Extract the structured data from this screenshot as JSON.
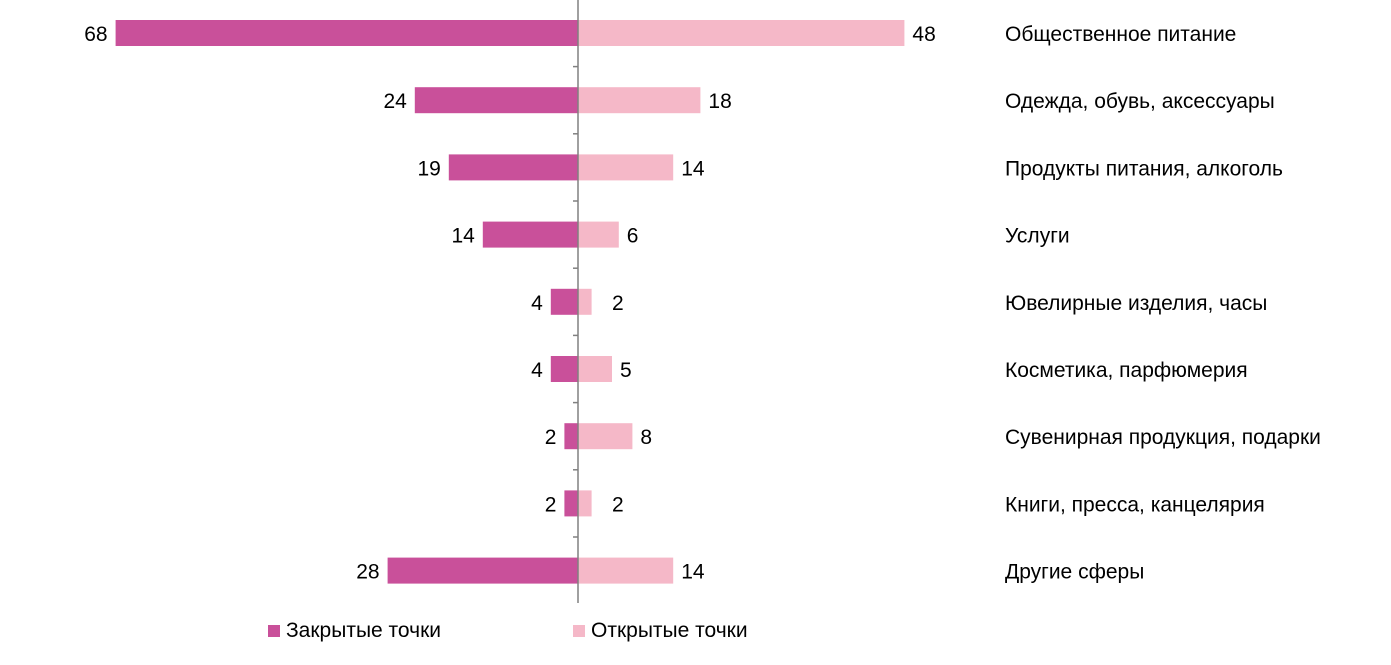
{
  "chart_data": {
    "type": "bar",
    "orientation": "horizontal-diverging",
    "categories": [
      "Общественное питание",
      "Одежда, обувь, аксессуары",
      "Продукты питания, алкоголь",
      "Услуги",
      "Ювелирные изделия, часы",
      "Косметика, парфюмерия",
      "Сувенирная продукция, подарки",
      "Книги, пресса, канцелярия",
      "Другие сферы"
    ],
    "series": [
      {
        "name": "Закрытые точки",
        "color": "#C9509A",
        "direction": "left",
        "values": [
          68,
          24,
          19,
          14,
          4,
          4,
          2,
          2,
          28
        ]
      },
      {
        "name": "Открытые точки",
        "color": "#F5B8C8",
        "direction": "right",
        "values": [
          48,
          18,
          14,
          6,
          2,
          5,
          8,
          2,
          14
        ]
      }
    ],
    "legend_position": "bottom",
    "grid": false,
    "axis_color": "#808080"
  }
}
